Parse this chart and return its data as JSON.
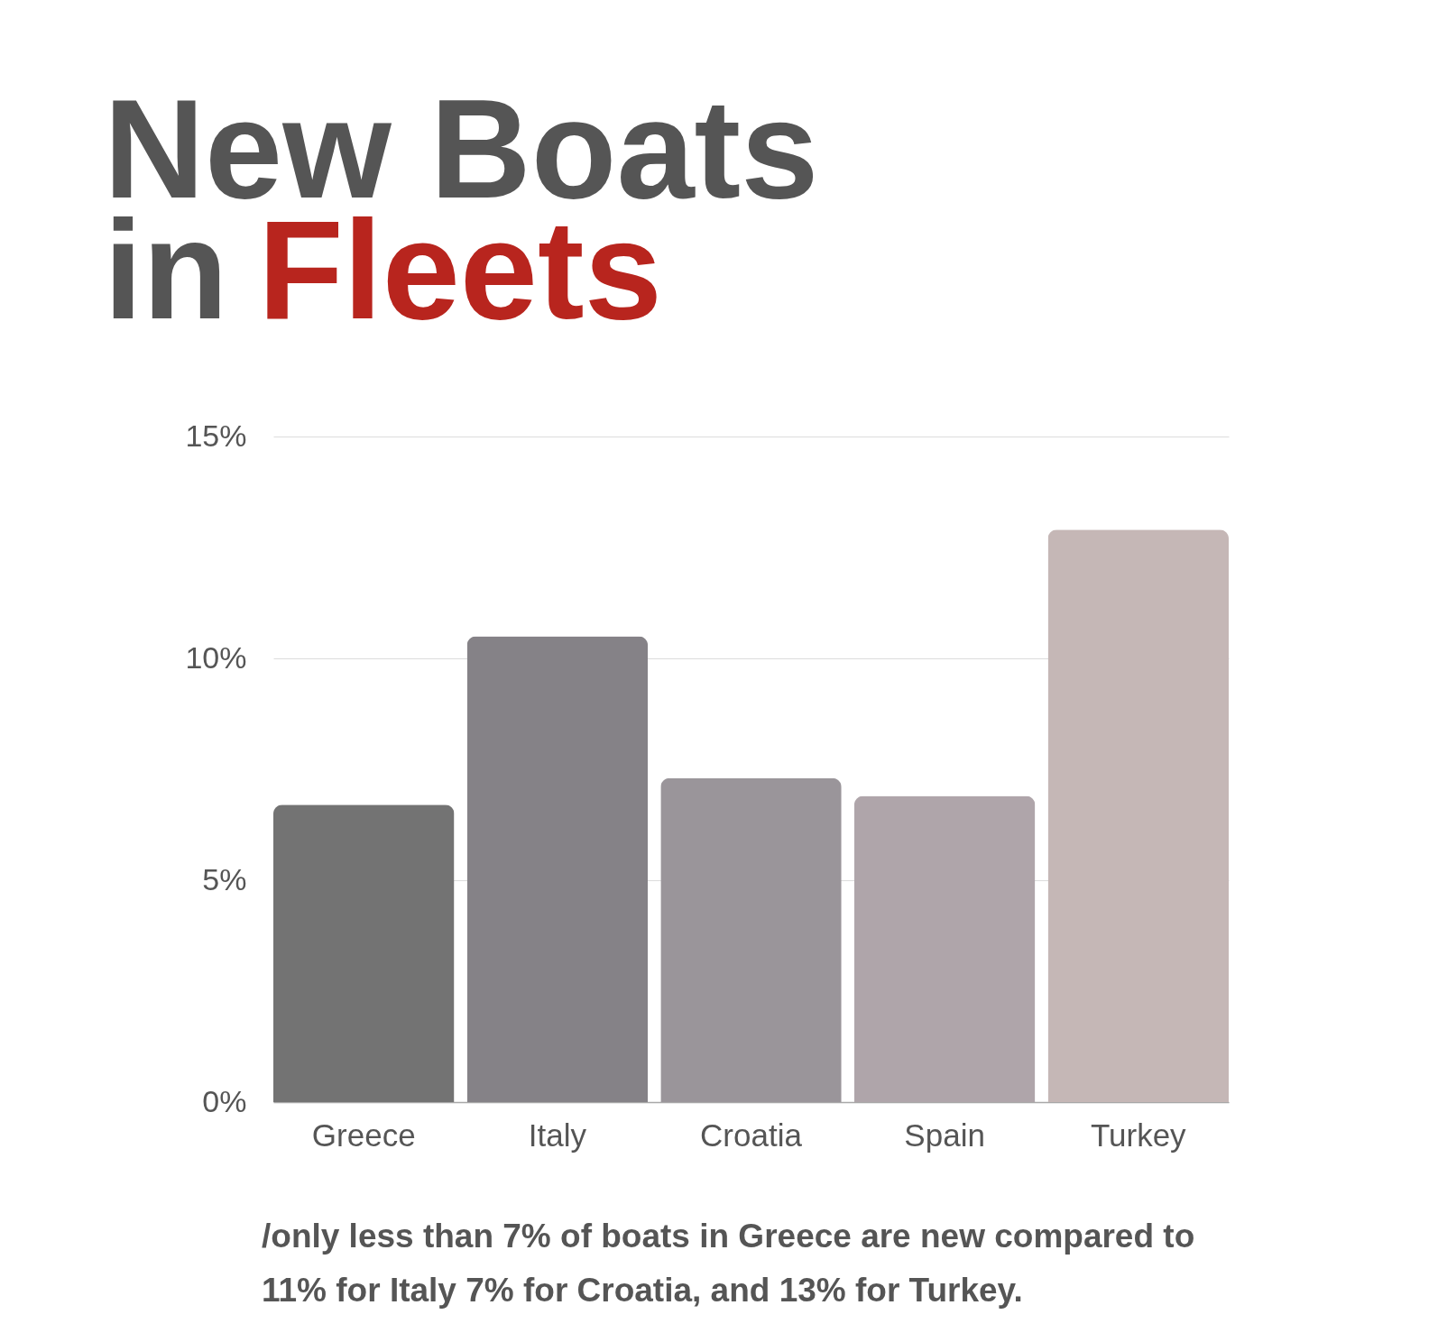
{
  "chart_data": {
    "type": "bar",
    "title": "New Boats in Fleets",
    "categories": [
      "Greece",
      "Italy",
      "Croatia",
      "Spain",
      "Turkey"
    ],
    "values": [
      6.7,
      10.5,
      7.3,
      6.9,
      12.9
    ],
    "colors": [
      "#737373",
      "#858287",
      "#9a959a",
      "#afa5aa",
      "#c5b7b6"
    ],
    "ylim": [
      0,
      15
    ],
    "yticks": [
      {
        "value": 0,
        "label": "0%"
      },
      {
        "value": 5,
        "label": "5%"
      },
      {
        "value": 10,
        "label": "10%"
      },
      {
        "value": 15,
        "label": "15%"
      }
    ],
    "grid": "y",
    "annotations": [
      "/only less than 7% of boats in  Greece are new compared to 11% for Italy 7% for Croatia, and 13% for Turkey."
    ]
  }
}
